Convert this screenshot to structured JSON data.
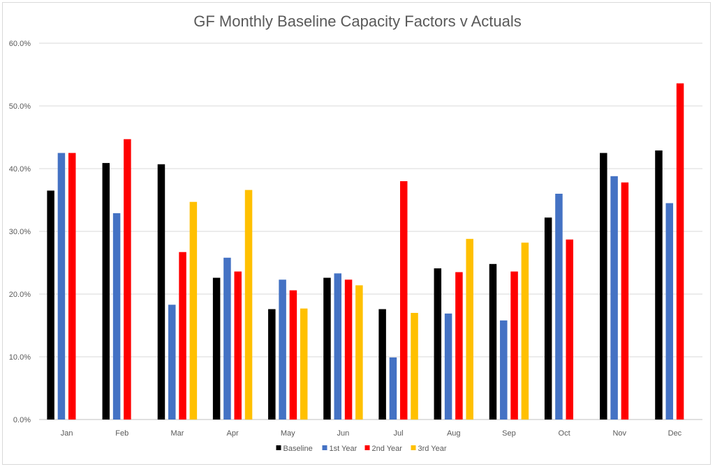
{
  "chart_data": {
    "type": "bar",
    "title": "GF Monthly Baseline Capacity Factors v Actuals",
    "xlabel": "",
    "ylabel": "",
    "categories": [
      "Jan",
      "Feb",
      "Mar",
      "Apr",
      "May",
      "Jun",
      "Jul",
      "Aug",
      "Sep",
      "Oct",
      "Nov",
      "Dec"
    ],
    "ylim": [
      0,
      60
    ],
    "yticks": [
      0,
      10,
      20,
      30,
      40,
      50,
      60
    ],
    "ytick_labels": [
      "0.0%",
      "10.0%",
      "20.0%",
      "30.0%",
      "40.0%",
      "50.0%",
      "60.0%"
    ],
    "grid": true,
    "legend_position": "bottom",
    "series": [
      {
        "name": "Baseline",
        "color": "#000000",
        "values": [
          36.5,
          40.9,
          40.7,
          22.6,
          17.6,
          22.6,
          17.6,
          24.1,
          24.8,
          32.2,
          42.5,
          42.9
        ]
      },
      {
        "name": "1st Year",
        "color": "#4472c4",
        "values": [
          42.5,
          32.9,
          18.3,
          25.8,
          22.3,
          23.3,
          9.9,
          16.9,
          15.8,
          36.0,
          38.8,
          34.5
        ]
      },
      {
        "name": "2nd Year",
        "color": "#ff0000",
        "values": [
          42.5,
          44.7,
          26.7,
          23.6,
          20.6,
          22.3,
          38.0,
          23.5,
          23.6,
          28.7,
          37.8,
          53.6
        ]
      },
      {
        "name": "3rd Year",
        "color": "#ffc000",
        "values": [
          null,
          null,
          34.7,
          36.6,
          17.7,
          21.4,
          17.0,
          28.8,
          28.2,
          null,
          null,
          null
        ]
      }
    ]
  }
}
